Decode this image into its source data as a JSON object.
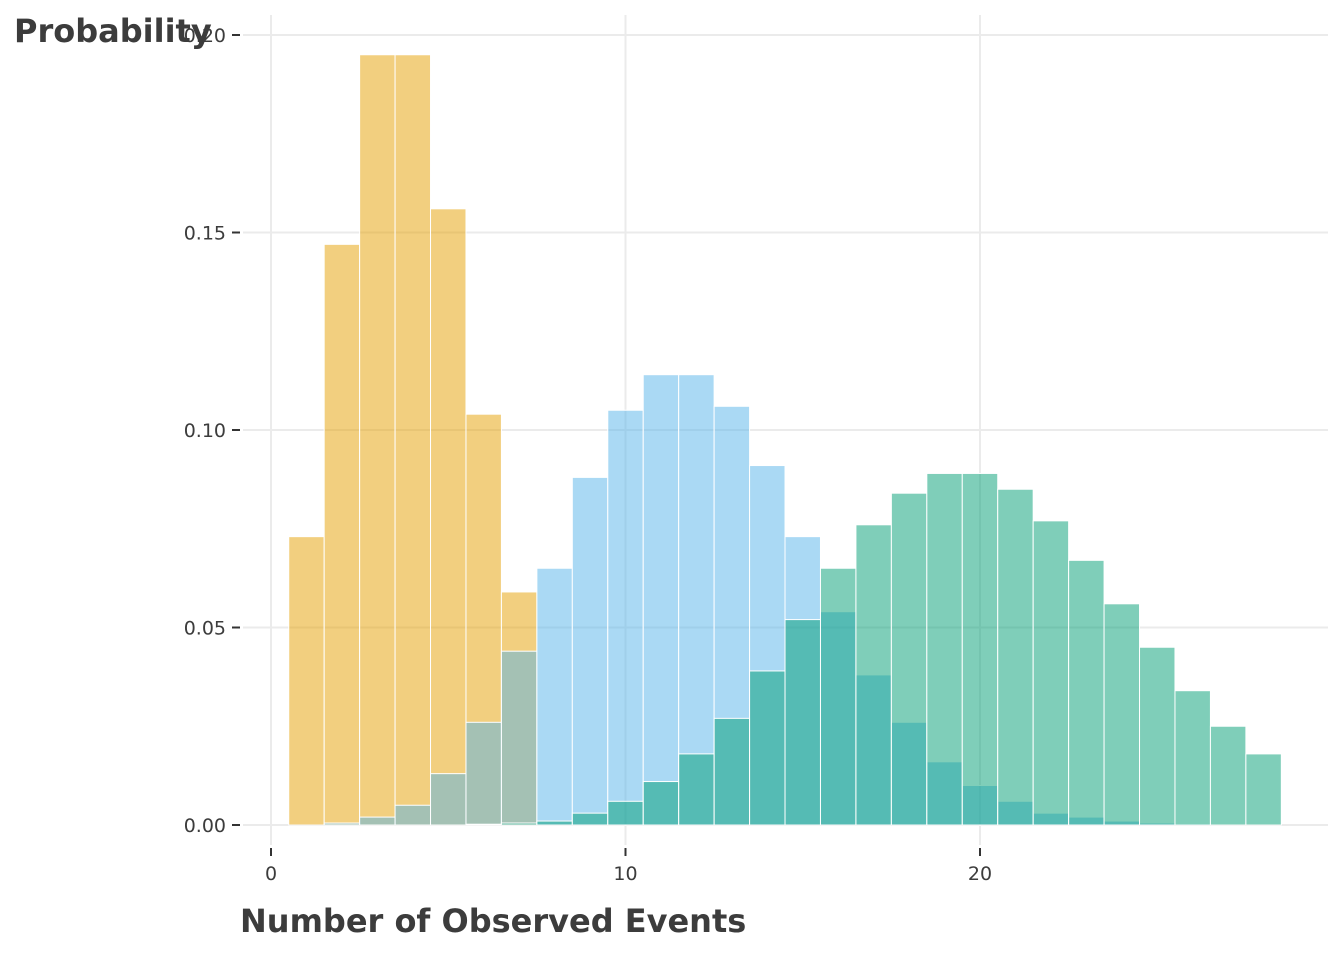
{
  "chart_data": {
    "type": "bar",
    "title": "",
    "xlabel": "Number of Observed Events",
    "ylabel": "Probability",
    "xlim": [
      0,
      29
    ],
    "ylim": [
      0,
      0.2
    ],
    "x_ticks": [
      "0",
      "10",
      "20"
    ],
    "y_ticks": [
      "0.00",
      "0.05",
      "0.10",
      "0.15",
      "0.20"
    ],
    "grid": true,
    "legend": "none",
    "x": [
      1,
      2,
      3,
      4,
      5,
      6,
      7,
      8,
      9,
      10,
      11,
      12,
      13,
      14,
      15,
      16,
      17,
      18,
      19,
      20,
      21,
      22,
      23,
      24,
      25,
      26,
      27,
      28
    ],
    "series": [
      {
        "color": "#E69F00",
        "opacity": 0.5,
        "values": [
          0.073,
          0.147,
          0.195,
          0.195,
          0.156,
          0.104,
          0.059,
          0.0,
          0.0,
          0.0,
          0.0,
          0.0,
          0.0,
          0.0,
          0.0,
          0.0,
          0.0,
          0.0,
          0.0,
          0.0,
          0.0,
          0.0,
          0.0,
          0.0,
          0.0,
          0.0,
          0.0,
          0.0
        ]
      },
      {
        "color": "#56B4E9",
        "opacity": 0.5,
        "values": [
          0.0,
          0.0005,
          0.002,
          0.005,
          0.013,
          0.026,
          0.044,
          0.065,
          0.088,
          0.105,
          0.114,
          0.114,
          0.106,
          0.091,
          0.073,
          0.054,
          0.038,
          0.026,
          0.016,
          0.01,
          0.006,
          0.003,
          0.002,
          0.001,
          0.0005,
          0.0003,
          0.0,
          0.0
        ]
      },
      {
        "color": "#009E73",
        "opacity": 0.5,
        "values": [
          0.0,
          0.0,
          0.0,
          0.0,
          0.0,
          0.0002,
          0.0005,
          0.001,
          0.003,
          0.006,
          0.011,
          0.018,
          0.027,
          0.039,
          0.052,
          0.065,
          0.076,
          0.084,
          0.089,
          0.089,
          0.085,
          0.077,
          0.067,
          0.056,
          0.045,
          0.034,
          0.025,
          0.018
        ]
      }
    ]
  }
}
